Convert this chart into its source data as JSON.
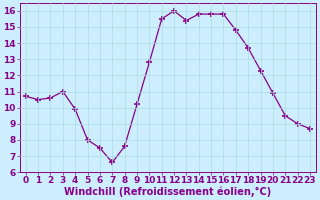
{
  "x": [
    0,
    1,
    2,
    3,
    4,
    5,
    6,
    7,
    8,
    9,
    10,
    11,
    12,
    13,
    14,
    15,
    16,
    17,
    18,
    19,
    20,
    21,
    22,
    23
  ],
  "y": [
    10.7,
    10.5,
    10.6,
    11.0,
    9.9,
    8.0,
    7.5,
    6.6,
    7.6,
    10.2,
    12.8,
    15.5,
    16.0,
    15.4,
    15.8,
    15.8,
    15.8,
    14.8,
    13.7,
    12.3,
    10.9,
    9.5,
    9.0,
    8.7
  ],
  "line_color": "#880088",
  "marker": "+",
  "marker_size": 4,
  "marker_linewidth": 1.2,
  "line_width": 0.9,
  "bg_color": "#cceeff",
  "grid_color": "#aadddd",
  "xlabel": "Windchill (Refroidissement éolien,°C)",
  "xlim": [
    -0.5,
    23.5
  ],
  "ylim": [
    6,
    16.5
  ],
  "yticks": [
    6,
    7,
    8,
    9,
    10,
    11,
    12,
    13,
    14,
    15,
    16
  ],
  "xticks": [
    0,
    1,
    2,
    3,
    4,
    5,
    6,
    7,
    8,
    9,
    10,
    11,
    12,
    13,
    14,
    15,
    16,
    17,
    18,
    19,
    20,
    21,
    22,
    23
  ],
  "tick_color": "#880088",
  "label_color": "#880088",
  "font_size": 6.5,
  "label_font_size": 7.0
}
